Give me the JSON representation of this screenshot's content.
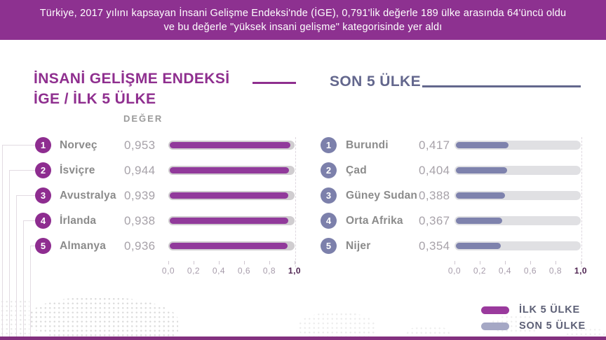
{
  "header": {
    "line1": "Türkiye, 2017 yılını kapsayan İnsani Gelişme Endeksi'nde (İGE), 0,791'lik değerle 189 ülke arasında 64'üncü oldu",
    "line2": "ve bu değerle \"yüksek insani gelişme\" kategorisinde yer aldı",
    "background": "#8d3190"
  },
  "chart_data": [
    {
      "type": "bar",
      "orientation": "horizontal",
      "title_line1": "İNSANİ GELİŞME ENDEKSİ",
      "title_line2": "İGE / İLK 5 ÜLKE",
      "value_column_label": "DEĞER",
      "ranks": [
        "1",
        "2",
        "3",
        "4",
        "5"
      ],
      "categories": [
        "Norveç",
        "İsviçre",
        "Avustralya",
        "İrlanda",
        "Almanya"
      ],
      "values": [
        0.953,
        0.944,
        0.939,
        0.938,
        0.936
      ],
      "value_labels": [
        "0,953",
        "0,944",
        "0,939",
        "0,938",
        "0,936"
      ],
      "xlim": [
        0,
        1
      ],
      "x_ticks": [
        "0,0",
        "0,2",
        "0,4",
        "0,6",
        "0,8",
        "1,0"
      ],
      "bar_color": "#913a9b",
      "track_color": "#d0cdd0",
      "grid": "dashed line at 1,0 only",
      "legend_position": "none"
    },
    {
      "type": "bar",
      "orientation": "horizontal",
      "title_line1": "SON 5 ÜLKE",
      "ranks": [
        "1",
        "2",
        "3",
        "4",
        "5"
      ],
      "categories": [
        "Burundi",
        "Çad",
        "Güney Sudan",
        "Orta Afrika",
        "Nijer"
      ],
      "values": [
        0.417,
        0.404,
        0.388,
        0.367,
        0.354
      ],
      "value_labels": [
        "0,417",
        "0,404",
        "0,388",
        "0,367",
        "0,354"
      ],
      "xlim": [
        0,
        1
      ],
      "x_ticks": [
        "0,0",
        "0,2",
        "0,4",
        "0,6",
        "0,8",
        "1,0"
      ],
      "bar_color": "#7e82ad",
      "track_color": "#e0e0e3",
      "grid": "dashed line at 1,0 only",
      "legend_position": "bottom-right"
    }
  ],
  "legend": {
    "items": [
      {
        "label": "İLK 5 ÜLKE",
        "color": "#9a3a9d"
      },
      {
        "label": "SON 5 ÜLKE",
        "color": "#a5a8c5"
      }
    ]
  }
}
